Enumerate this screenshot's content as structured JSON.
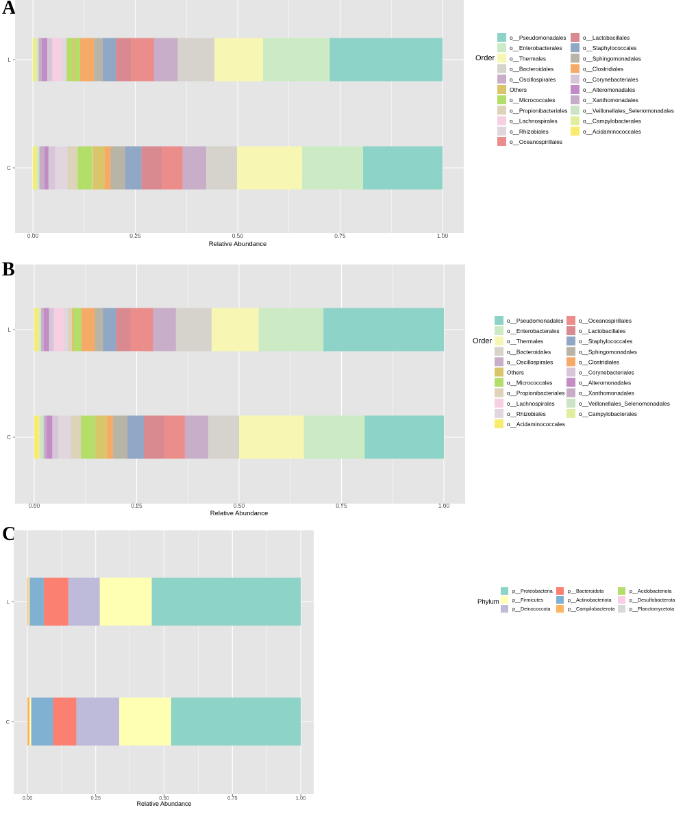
{
  "panels": [
    "A",
    "B",
    "C"
  ],
  "colors": {
    "o__Pseudomonadales": "#8dd3c7",
    "o__Enterobacterales": "#ccebc5",
    "o__Thermales": "#f7f7b3",
    "o__Bacteroidales": "#d6d3cc",
    "o__Oscillospirales": "#c9aec9",
    "Others": "#d9c56a",
    "o__Micrococcales": "#b3de69",
    "o__Propionibacteriales": "#ddd3b9",
    "o__Lachnospirales": "#f6cfe3",
    "o__Rhizobiales": "#e2d6de",
    "o__Oceanospirillales": "#ea8d8b",
    "o__Lactobacillales": "#d98a90",
    "o__Staphylococcales": "#90a7c5",
    "o__Sphingomonadales": "#b9b5a6",
    "o__Clostridiales": "#f5ab67",
    "o__Corynebacteriales": "#d7c6d8",
    "o__Alteromonadales": "#c28cc4",
    "o__Xanthomonadales": "#c7acc8",
    "o__Veillonellales_Selenomonadales": "#cce3c6",
    "o__Campylobacterales": "#e2ee9e",
    "o__Acidaminococcales": "#f8ec6e",
    "p__Proteobacteria": "#8dd3c7",
    "p__Firmicutes": "#ffffb3",
    "p__Deinococcota": "#bebada",
    "p__Bacteroidota": "#fb8072",
    "p__Actinobacteriota": "#80b1d3",
    "p__Campilobacterota": "#fdb462",
    "p__Acidobacteriota": "#b3de69",
    "p__Desulfobacterota": "#fccde5",
    "p__Planctomycetota": "#d9d9d9"
  },
  "chart_data": [
    {
      "panel": "A",
      "type": "bar",
      "orientation": "horizontal",
      "stacked": true,
      "categories": [
        "C",
        "L"
      ],
      "xlabel": "Relative Abundance",
      "ylabel": "",
      "xlim": [
        0,
        1
      ],
      "xticks": [
        "0.00",
        "0.25",
        "0.50",
        "0.75",
        "1.00"
      ],
      "legend_title": "Order",
      "legend_position": "right",
      "legend_entries": [
        "o__Pseudomonadales",
        "o__Enterobacterales",
        "o__Thermales",
        "o__Bacteroidales",
        "o__Oscillospirales",
        "Others",
        "o__Micrococcales",
        "o__Propionibacteriales",
        "o__Lachnospirales",
        "o__Rhizobiales",
        "o__Oceanospirillales",
        "o__Lactobacillales",
        "o__Staphylococcales",
        "o__Sphingomonadales",
        "o__Clostridiales",
        "o__Corynebacteriales",
        "o__Alteromonadales",
        "o__Xanthomonadales",
        "o__Veillonellales_Selenomonadales",
        "o__Campylobacterales",
        "o__Acidaminococcales"
      ],
      "stacks": {
        "L": [
          [
            "o__Acidaminococcales",
            0.004
          ],
          [
            "o__Campylobacterales",
            0.006
          ],
          [
            "o__Veillonellales_Selenomonadales",
            0.004
          ],
          [
            "o__Xanthomonadales",
            0.007
          ],
          [
            "o__Alteromonadales",
            0.013
          ],
          [
            "o__Corynebacteriales",
            0.012
          ],
          [
            "o__Lachnospirales",
            0.024
          ],
          [
            "o__Rhizobiales",
            0.01
          ],
          [
            "o__Micrococcales",
            0.013
          ],
          [
            "o__Others",
            0.0
          ],
          [
            "Others",
            0.007
          ],
          [
            "o__Micrococcales",
            0.012
          ],
          [
            "o__Clostridiales",
            0.033
          ],
          [
            "o__Sphingomonadales",
            0.02
          ],
          [
            "o__Staphylococcales",
            0.032
          ],
          [
            "o__Lactobacillales",
            0.035
          ],
          [
            "o__Oceanospirillales",
            0.055
          ],
          [
            "o__Oscillospirales",
            0.056
          ],
          [
            "o__Bacteroidales",
            0.087
          ],
          [
            "o__Thermales",
            0.115
          ],
          [
            "o__Enterobacterales",
            0.158
          ],
          [
            "o__Pseudomonadales",
            0.267
          ]
        ],
        "C": [
          [
            "o__Acidaminococcales",
            0.008
          ],
          [
            "o__Campylobacterales",
            0.003
          ],
          [
            "o__Veillonellales_Selenomonadales",
            0.005
          ],
          [
            "o__Xanthomonadales",
            0.012
          ],
          [
            "o__Alteromonadales",
            0.01
          ],
          [
            "o__Corynebacteriales",
            0.016
          ],
          [
            "o__Rhizobiales",
            0.03
          ],
          [
            "o__Propionibacteriales",
            0.025
          ],
          [
            "o__Micrococcales",
            0.035
          ],
          [
            "o__Propionibacteriales",
            0.002
          ],
          [
            "Others",
            0.028
          ],
          [
            "o__Clostridiales",
            0.015
          ],
          [
            "o__Sphingomonadales",
            0.035
          ],
          [
            "o__Staphylococcales",
            0.04
          ],
          [
            "o__Lactobacillales",
            0.05
          ],
          [
            "o__Oceanospirillales",
            0.05
          ],
          [
            "o__Oscillospirales",
            0.057
          ],
          [
            "o__Bacteroidales",
            0.075
          ],
          [
            "o__Thermales",
            0.158
          ],
          [
            "o__Enterobacterales",
            0.148
          ],
          [
            "o__Pseudomonadales",
            0.193
          ]
        ]
      }
    },
    {
      "panel": "B",
      "type": "bar",
      "orientation": "horizontal",
      "stacked": true,
      "categories": [
        "C",
        "L"
      ],
      "xlabel": "Relative Abundance",
      "ylabel": "",
      "xlim": [
        0,
        1
      ],
      "xticks": [
        "0.00",
        "0.25",
        "0.50",
        "0.75",
        "1.00"
      ],
      "legend_title": "Order",
      "legend_position": "right",
      "legend_entries": [
        "o__Pseudomonadales",
        "o__Enterobacterales",
        "o__Thermales",
        "o__Bacteroidales",
        "o__Oscillospirales",
        "Others",
        "o__Micrococcales",
        "o__Propionibacteriales",
        "o__Lachnospirales",
        "o__Rhizobiales",
        "o__Acidaminococcales",
        "o__Oceanospirillales",
        "o__Lactobacillales",
        "o__Staphylococcales",
        "o__Sphingomonadales",
        "o__Clostridiales",
        "o__Corynebacteriales",
        "o__Alteromonadales",
        "o__Xanthomonadales",
        "o__Veillonellales_Selenomonadales",
        "o__Campylobacterales"
      ],
      "stacks": {
        "L": [
          [
            "o__Acidaminococcales",
            0.008
          ],
          [
            "o__Campylobacterales",
            0.005
          ],
          [
            "o__Veillonellales_Selenomonadales",
            0.004
          ],
          [
            "o__Xanthomonadales",
            0.006
          ],
          [
            "o__Alteromonadales",
            0.013
          ],
          [
            "o__Corynebacteriales",
            0.012
          ],
          [
            "o__Lachnospirales",
            0.024
          ],
          [
            "o__Rhizobiales",
            0.01
          ],
          [
            "o__Propionibacteriales",
            0.01
          ],
          [
            "Others",
            0.005
          ],
          [
            "o__Micrococcales",
            0.018
          ],
          [
            "o__Clostridiales",
            0.033
          ],
          [
            "o__Sphingomonadales",
            0.02
          ],
          [
            "o__Staphylococcales",
            0.032
          ],
          [
            "o__Lactobacillales",
            0.035
          ],
          [
            "o__Oceanospirillales",
            0.055
          ],
          [
            "o__Oscillospirales",
            0.056
          ],
          [
            "o__Bacteroidales",
            0.087
          ],
          [
            "o__Thermales",
            0.115
          ],
          [
            "o__Enterobacterales",
            0.158
          ],
          [
            "o__Pseudomonadales",
            0.294
          ]
        ],
        "C": [
          [
            "o__Acidaminococcales",
            0.01
          ],
          [
            "o__Campylobacterales",
            0.005
          ],
          [
            "o__Veillonellales_Selenomonadales",
            0.008
          ],
          [
            "o__Xanthomonadales",
            0.007
          ],
          [
            "o__Alteromonadales",
            0.014
          ],
          [
            "o__Corynebacteriales",
            0.015
          ],
          [
            "o__Rhizobiales",
            0.03
          ],
          [
            "o__Propionibacteriales",
            0.025
          ],
          [
            "o__Micrococcales",
            0.035
          ],
          [
            "Others",
            0.028
          ],
          [
            "o__Clostridiales",
            0.015
          ],
          [
            "o__Sphingomonadales",
            0.035
          ],
          [
            "o__Staphylococcales",
            0.04
          ],
          [
            "o__Lactobacillales",
            0.05
          ],
          [
            "o__Oceanospirillales",
            0.05
          ],
          [
            "o__Oscillospirales",
            0.057
          ],
          [
            "o__Bacteroidales",
            0.075
          ],
          [
            "o__Thermales",
            0.158
          ],
          [
            "o__Enterobacterales",
            0.148
          ],
          [
            "o__Pseudomonadales",
            0.193
          ]
        ]
      }
    },
    {
      "panel": "C",
      "type": "bar",
      "orientation": "horizontal",
      "stacked": true,
      "categories": [
        "C",
        "L"
      ],
      "xlabel": "Relative Abundance",
      "ylabel": "",
      "xlim": [
        0,
        1
      ],
      "xticks": [
        "0.00",
        "0.25",
        "0.50",
        "0.75",
        "1.00"
      ],
      "legend_title": "Phylum",
      "legend_position": "right",
      "legend_entries": [
        "p__Proteobacteria",
        "p__Firmicutes",
        "p__Deinococcota",
        "p__Bacteroidota",
        "p__Actinobacteriota",
        "p__Campilobacterota",
        "p__Acidobacteriota",
        "p__Desulfobacterota",
        "p__Planctomycetota"
      ],
      "stacks": {
        "L": [
          [
            "p__Campilobacterota",
            0.004
          ],
          [
            "p__Firmicutes",
            0.004
          ],
          [
            "p__Actinobacteriota",
            0.052
          ],
          [
            "p__Bacteroidota",
            0.09
          ],
          [
            "p__Deinococcota",
            0.115
          ],
          [
            "p__Firmicutes",
            0.19
          ],
          [
            "p__Proteobacteria",
            0.545
          ]
        ],
        "C": [
          [
            "p__Campilobacterota",
            0.008
          ],
          [
            "p__Firmicutes",
            0.006
          ],
          [
            "p__Actinobacteriota",
            0.08
          ],
          [
            "p__Bacteroidota",
            0.085
          ],
          [
            "p__Deinococcota",
            0.157
          ],
          [
            "p__Firmicutes",
            0.19
          ],
          [
            "p__Proteobacteria",
            0.474
          ]
        ]
      }
    }
  ]
}
